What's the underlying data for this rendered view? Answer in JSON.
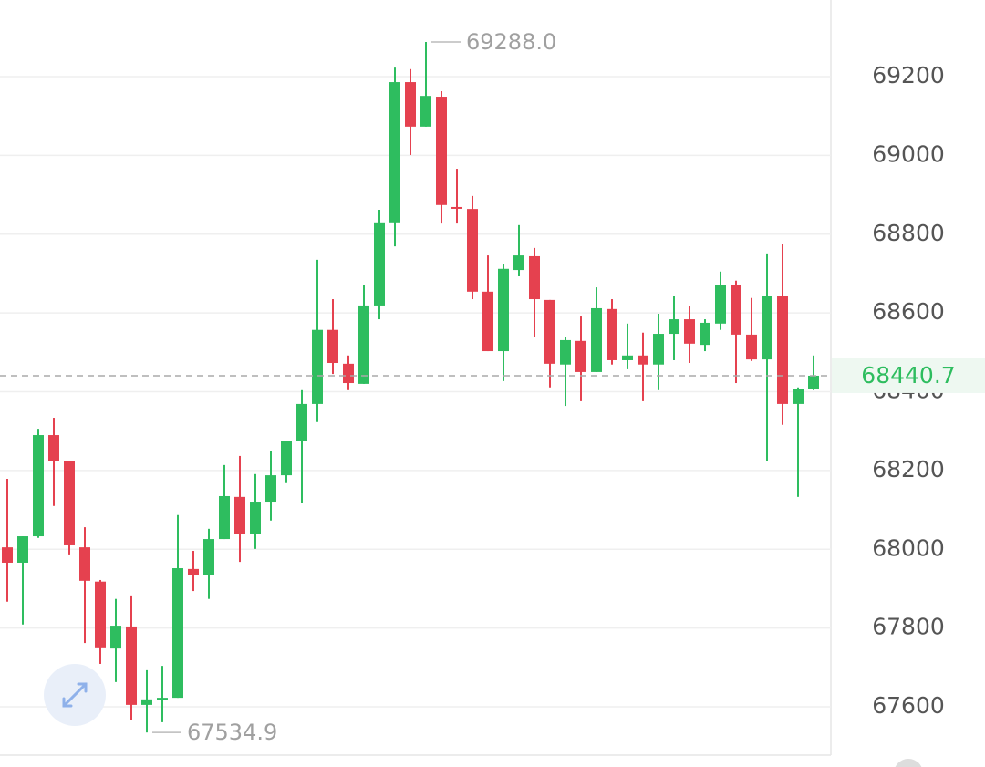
{
  "chart_data": {
    "type": "candlestick",
    "colors": {
      "up": "#2ebd5f",
      "down": "#e5414f"
    },
    "open": [
      68005,
      67966,
      68033,
      68290,
      68225,
      68005,
      67918,
      67748,
      67804,
      67605,
      67619,
      67623,
      67950,
      67934,
      68026,
      68133,
      68038,
      68121,
      68188,
      68274,
      68369,
      68557,
      68471,
      68420,
      68619,
      68830,
      69186,
      69073,
      69149,
      68869,
      68864,
      68654,
      68503,
      68709,
      68744,
      68633,
      68469,
      68529,
      68450,
      68610,
      68480,
      68492,
      68469,
      68547,
      68584,
      68519,
      68573,
      68672,
      68545,
      68482,
      68642,
      68369,
      68406
    ],
    "high": [
      68179,
      68033,
      68306,
      68334,
      68225,
      68056,
      67922,
      67874,
      67883,
      67693,
      67704,
      68087,
      67996,
      68052,
      68214,
      68237,
      68191,
      68249,
      68274,
      68404,
      68735,
      68635,
      68492,
      68672,
      68862,
      69223,
      69219,
      69288,
      69163,
      68966,
      68897,
      68746,
      68723,
      68823,
      68765,
      68633,
      68538,
      68591,
      68665,
      68635,
      68573,
      68550,
      68598,
      68642,
      68617,
      68584,
      68705,
      68682,
      68638,
      68751,
      68776,
      68411,
      68492
    ],
    "low": [
      67867,
      67809,
      68029,
      68110,
      67987,
      67762,
      67709,
      67663,
      67566,
      67534.9,
      67561,
      67623,
      67894,
      67874,
      68026,
      67968,
      68001,
      68073,
      68168,
      68117,
      68323,
      68445,
      68404,
      68420,
      68584,
      68769,
      69001,
      69073,
      68827,
      68827,
      68635,
      68503,
      68427,
      68693,
      68538,
      68411,
      68364,
      68376,
      68450,
      68469,
      68457,
      68376,
      68404,
      68480,
      68473,
      68503,
      68557,
      68422,
      68478,
      68225,
      68316,
      68133,
      68404
    ],
    "close": [
      67966,
      68033,
      68290,
      68225,
      68010,
      67920,
      67751,
      67806,
      67605,
      67619,
      67623,
      67952,
      67934,
      68026,
      68135,
      68038,
      68121,
      68188,
      68274,
      68369,
      68557,
      68473,
      68422,
      68619,
      68830,
      69186,
      69073,
      69151,
      68874,
      68867,
      68654,
      68503,
      68712,
      68746,
      68635,
      68471,
      68531,
      68450,
      68612,
      68480,
      68492,
      68469,
      68547,
      68584,
      68522,
      68575,
      68672,
      68545,
      68482,
      68642,
      68369,
      68406,
      68440.7
    ],
    "ylim": [
      67477.4,
      69394.5
    ],
    "yticks": [
      67600,
      67800,
      68000,
      68200,
      68400,
      68600,
      68800,
      69000,
      69200
    ],
    "grid": true,
    "annotations": [
      {
        "value": 69288,
        "label": "69288.0"
      },
      {
        "value": 67534.9,
        "label": "67534.9"
      }
    ],
    "last_price": 68440.7
  }
}
